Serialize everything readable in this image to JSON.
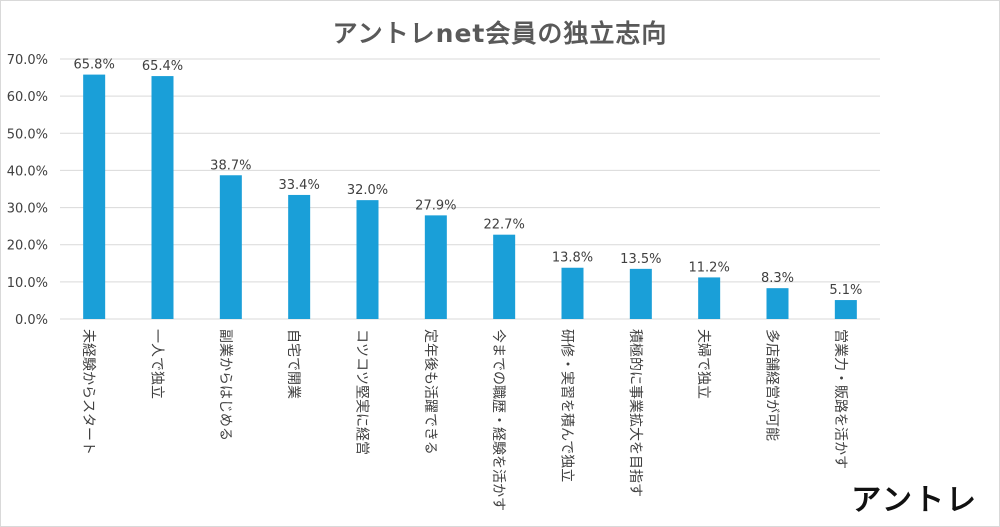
{
  "chart_data": {
    "type": "bar",
    "title": "アントレnet会員の独立志向",
    "categories": [
      "未経験からスタート",
      "一人で独立",
      "副業からはじめる",
      "自宅で開業",
      "コツコツ堅実に経営",
      "定年後も活躍できる",
      "今までの職歴・経験を活かす",
      "研修・実習を積んで独立",
      "積極的に事業拡大を目指す",
      "夫婦で独立",
      "多店舗経営が可能",
      "営業力・販路を活かす"
    ],
    "values": [
      65.8,
      65.4,
      38.7,
      33.4,
      32.0,
      27.9,
      22.7,
      13.8,
      13.5,
      11.2,
      8.3,
      5.1
    ],
    "data_labels": [
      "65.8%",
      "65.4%",
      "38.7%",
      "33.4%",
      "32.0%",
      "27.9%",
      "22.7%",
      "13.8%",
      "13.5%",
      "11.2%",
      "8.3%",
      "5.1%"
    ],
    "y_ticks": [
      0,
      10,
      20,
      30,
      40,
      50,
      60,
      70
    ],
    "y_tick_labels": [
      "0.0%",
      "10.0%",
      "20.0%",
      "30.0%",
      "40.0%",
      "50.0%",
      "60.0%",
      "70.0%"
    ],
    "ylim": [
      0,
      70
    ],
    "grid": true,
    "xlabel": "",
    "ylabel": ""
  },
  "colors": {
    "bar": "#1a9fd8",
    "grid": "#d9d9d9",
    "text": "#404040",
    "title": "#595959"
  },
  "logo": {
    "text": "アントレ"
  }
}
